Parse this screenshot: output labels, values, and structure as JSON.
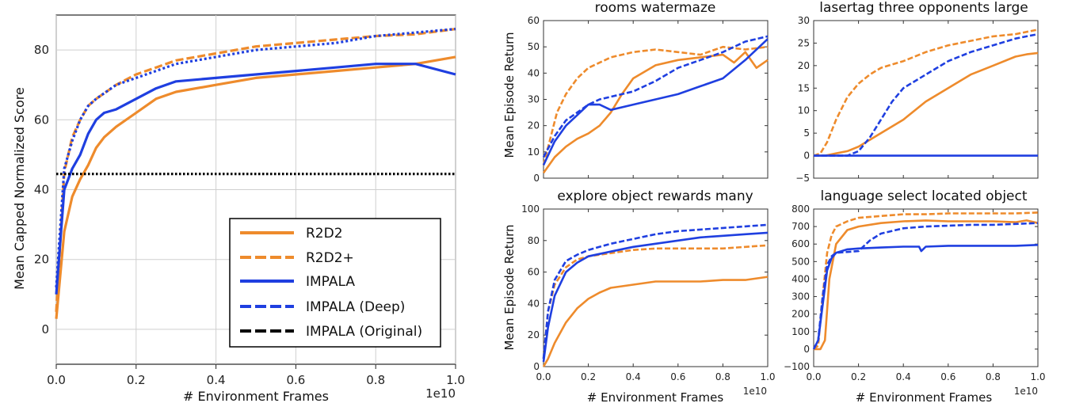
{
  "colors": {
    "r2d2": "#ee8b2c",
    "impala": "#1f3fe0",
    "original": "#000000"
  },
  "chart_data": [
    {
      "type": "line",
      "id": "main",
      "title": "",
      "xlabel": "# Environment Frames",
      "ylabel": "Mean Capped Normalized Score",
      "x_scale_label": "1e10",
      "xlim": [
        0,
        1.0
      ],
      "ylim": [
        -10,
        90
      ],
      "xticks": [
        0.0,
        0.2,
        0.4,
        0.6,
        0.8,
        1.0
      ],
      "xtick_labels": [
        "0.0",
        "0.2",
        "0.4",
        "0.6",
        "0.8",
        "1.0"
      ],
      "yticks": [
        0,
        20,
        40,
        60,
        80
      ],
      "ytick_labels": [
        "0",
        "20",
        "40",
        "60",
        "80"
      ],
      "grid": true,
      "legend": [
        "R2D2",
        "R2D2+",
        "IMPALA",
        "IMPALA (Deep)",
        "IMPALA (Original)"
      ],
      "series": [
        {
          "name": "R2D2",
          "color": "r2d2",
          "style": "solid",
          "x": [
            0,
            0.02,
            0.04,
            0.06,
            0.08,
            0.1,
            0.12,
            0.15,
            0.2,
            0.25,
            0.3,
            0.4,
            0.5,
            0.6,
            0.7,
            0.8,
            0.9,
            1.0
          ],
          "y": [
            3,
            28,
            38,
            43,
            47,
            52,
            55,
            58,
            62,
            66,
            68,
            70,
            72,
            73,
            74,
            75,
            76,
            78
          ]
        },
        {
          "name": "R2D2+",
          "color": "r2d2",
          "style": "dashed",
          "x": [
            0,
            0.02,
            0.04,
            0.06,
            0.08,
            0.1,
            0.15,
            0.2,
            0.25,
            0.3,
            0.4,
            0.5,
            0.6,
            0.7,
            0.8,
            0.9,
            1.0
          ],
          "y": [
            5,
            45,
            55,
            60,
            64,
            66,
            70,
            73,
            75,
            77,
            79,
            81,
            82,
            83,
            84,
            84.5,
            86
          ]
        },
        {
          "name": "IMPALA",
          "color": "impala",
          "style": "solid",
          "x": [
            0,
            0.02,
            0.04,
            0.06,
            0.08,
            0.1,
            0.12,
            0.15,
            0.2,
            0.25,
            0.3,
            0.4,
            0.5,
            0.6,
            0.7,
            0.8,
            0.9,
            1.0
          ],
          "y": [
            10,
            40,
            46,
            50,
            56,
            60,
            62,
            63,
            66,
            69,
            71,
            72,
            73,
            74,
            75,
            76,
            76,
            73
          ]
        },
        {
          "name": "IMPALA (Deep)",
          "color": "impala",
          "style": "dotted",
          "x": [
            0,
            0.02,
            0.04,
            0.06,
            0.08,
            0.1,
            0.15,
            0.2,
            0.25,
            0.3,
            0.4,
            0.5,
            0.6,
            0.7,
            0.8,
            0.9,
            1.0
          ],
          "y": [
            12,
            46,
            54,
            60,
            64,
            66,
            70,
            72,
            74,
            76,
            78,
            80,
            81,
            82,
            84,
            85,
            86
          ]
        },
        {
          "name": "IMPALA (Original)",
          "color": "original",
          "style": "dotted",
          "x": [
            0,
            1.0
          ],
          "y": [
            44.5,
            44.5
          ]
        }
      ]
    },
    {
      "type": "line",
      "id": "p1",
      "title": "rooms watermaze",
      "xlabel": "",
      "ylabel": "Mean Episode Return",
      "xlim": [
        0,
        1.0
      ],
      "ylim": [
        0,
        60
      ],
      "yticks": [
        0,
        10,
        20,
        30,
        40,
        50,
        60
      ],
      "ytick_labels": [
        "0",
        "10",
        "20",
        "30",
        "40",
        "50",
        "60"
      ],
      "series": [
        {
          "name": "R2D2",
          "color": "r2d2",
          "style": "solid",
          "x": [
            0,
            0.05,
            0.1,
            0.15,
            0.2,
            0.25,
            0.3,
            0.35,
            0.4,
            0.5,
            0.6,
            0.7,
            0.8,
            0.85,
            0.9,
            0.95,
            1.0
          ],
          "y": [
            2,
            8,
            12,
            15,
            17,
            20,
            25,
            32,
            38,
            43,
            45,
            46,
            47,
            44,
            48,
            42,
            45
          ]
        },
        {
          "name": "R2D2+",
          "color": "r2d2",
          "style": "dashed",
          "x": [
            0,
            0.03,
            0.06,
            0.1,
            0.15,
            0.2,
            0.25,
            0.3,
            0.4,
            0.5,
            0.6,
            0.7,
            0.8,
            0.9,
            1.0
          ],
          "y": [
            5,
            15,
            25,
            32,
            38,
            42,
            44,
            46,
            48,
            49,
            48,
            47,
            50,
            49,
            50
          ]
        },
        {
          "name": "IMPALA",
          "color": "impala",
          "style": "solid",
          "x": [
            0,
            0.05,
            0.1,
            0.15,
            0.2,
            0.25,
            0.3,
            0.4,
            0.5,
            0.6,
            0.7,
            0.8,
            0.9,
            1.0
          ],
          "y": [
            5,
            14,
            20,
            24,
            28,
            28,
            26,
            28,
            30,
            32,
            35,
            38,
            45,
            53
          ]
        },
        {
          "name": "IMPALA (Deep)",
          "color": "impala",
          "style": "dashed",
          "x": [
            0,
            0.05,
            0.1,
            0.15,
            0.2,
            0.25,
            0.3,
            0.4,
            0.5,
            0.6,
            0.7,
            0.8,
            0.9,
            1.0
          ],
          "y": [
            8,
            16,
            22,
            25,
            28,
            30,
            31,
            33,
            37,
            42,
            45,
            48,
            52,
            54
          ]
        }
      ]
    },
    {
      "type": "line",
      "id": "p2",
      "title": "lasertag three opponents large",
      "xlabel": "",
      "ylabel": "",
      "xlim": [
        0,
        1.0
      ],
      "ylim": [
        -5,
        30
      ],
      "yticks": [
        -5,
        0,
        5,
        10,
        15,
        20,
        25,
        30
      ],
      "ytick_labels": [
        "−5",
        "0",
        "5",
        "10",
        "15",
        "20",
        "25",
        "30"
      ],
      "series": [
        {
          "name": "R2D2",
          "color": "r2d2",
          "style": "solid",
          "x": [
            0,
            0.05,
            0.1,
            0.15,
            0.2,
            0.3,
            0.4,
            0.5,
            0.6,
            0.7,
            0.8,
            0.9,
            0.95,
            1.0
          ],
          "y": [
            0,
            0,
            0.5,
            1,
            2,
            5,
            8,
            12,
            15,
            18,
            20,
            22,
            22.5,
            22.8
          ]
        },
        {
          "name": "R2D2+",
          "color": "r2d2",
          "style": "dashed",
          "x": [
            0,
            0.03,
            0.06,
            0.1,
            0.15,
            0.2,
            0.25,
            0.3,
            0.4,
            0.5,
            0.6,
            0.7,
            0.8,
            0.9,
            1.0
          ],
          "y": [
            0,
            0.5,
            3,
            8,
            13,
            16,
            18,
            19.5,
            21,
            23,
            24.5,
            25.5,
            26.5,
            27,
            28
          ]
        },
        {
          "name": "IMPALA",
          "color": "impala",
          "style": "solid",
          "x": [
            0,
            0.2,
            0.5,
            1.0
          ],
          "y": [
            0,
            0,
            0,
            0
          ]
        },
        {
          "name": "IMPALA (Deep)",
          "color": "impala",
          "style": "dashed",
          "x": [
            0,
            0.15,
            0.2,
            0.25,
            0.3,
            0.35,
            0.4,
            0.5,
            0.6,
            0.7,
            0.8,
            0.9,
            1.0
          ],
          "y": [
            0,
            0,
            1,
            4,
            8,
            12,
            15,
            18,
            21,
            23,
            24.5,
            26,
            27
          ]
        }
      ]
    },
    {
      "type": "line",
      "id": "p3",
      "title": "explore object rewards many",
      "xlabel": "# Environment Frames",
      "ylabel": "Mean Episode Return",
      "x_scale_label": "1e10",
      "xlim": [
        0,
        1.0
      ],
      "ylim": [
        0,
        100
      ],
      "xticks": [
        0.0,
        0.2,
        0.4,
        0.6,
        0.8,
        1.0
      ],
      "xtick_labels": [
        "0.0",
        "0.2",
        "0.4",
        "0.6",
        "0.8",
        "1.0"
      ],
      "yticks": [
        0,
        20,
        40,
        60,
        80,
        100
      ],
      "ytick_labels": [
        "0",
        "20",
        "40",
        "60",
        "80",
        "100"
      ],
      "series": [
        {
          "name": "R2D2",
          "color": "r2d2",
          "style": "solid",
          "x": [
            0,
            0.02,
            0.05,
            0.1,
            0.15,
            0.2,
            0.25,
            0.3,
            0.4,
            0.5,
            0.6,
            0.7,
            0.8,
            0.9,
            1.0
          ],
          "y": [
            0,
            5,
            15,
            28,
            37,
            43,
            47,
            50,
            52,
            54,
            54,
            54,
            55,
            55,
            57
          ]
        },
        {
          "name": "R2D2+",
          "color": "r2d2",
          "style": "dashed",
          "x": [
            0,
            0.02,
            0.05,
            0.1,
            0.15,
            0.2,
            0.3,
            0.4,
            0.5,
            0.6,
            0.7,
            0.8,
            0.9,
            1.0
          ],
          "y": [
            5,
            35,
            52,
            63,
            68,
            70,
            72,
            74,
            75,
            75,
            75,
            75,
            76,
            77
          ]
        },
        {
          "name": "IMPALA",
          "color": "impala",
          "style": "solid",
          "x": [
            0,
            0.02,
            0.05,
            0.1,
            0.15,
            0.2,
            0.3,
            0.4,
            0.5,
            0.6,
            0.7,
            0.8,
            0.9,
            1.0
          ],
          "y": [
            3,
            25,
            45,
            60,
            66,
            70,
            73,
            76,
            78,
            80,
            82,
            83,
            84,
            85
          ]
        },
        {
          "name": "IMPALA (Deep)",
          "color": "impala",
          "style": "dashed",
          "x": [
            0,
            0.02,
            0.05,
            0.1,
            0.15,
            0.2,
            0.3,
            0.4,
            0.5,
            0.6,
            0.7,
            0.8,
            0.9,
            1.0
          ],
          "y": [
            5,
            35,
            55,
            67,
            71,
            74,
            78,
            81,
            84,
            86,
            87,
            88,
            89,
            90
          ]
        }
      ]
    },
    {
      "type": "line",
      "id": "p4",
      "title": "language select located object",
      "xlabel": "# Environment Frames",
      "ylabel": "",
      "x_scale_label": "1e10",
      "xlim": [
        0,
        1.0
      ],
      "ylim": [
        -100,
        800
      ],
      "xticks": [
        0.0,
        0.2,
        0.4,
        0.6,
        0.8,
        1.0
      ],
      "xtick_labels": [
        "0.0",
        "0.2",
        "0.4",
        "0.6",
        "0.8",
        "1.0"
      ],
      "yticks": [
        -100,
        0,
        100,
        200,
        300,
        400,
        500,
        600,
        700,
        800
      ],
      "ytick_labels": [
        "−100",
        "0",
        "100",
        "200",
        "300",
        "400",
        "500",
        "600",
        "700",
        "800"
      ],
      "series": [
        {
          "name": "R2D2",
          "color": "r2d2",
          "style": "solid",
          "x": [
            0,
            0.03,
            0.05,
            0.07,
            0.1,
            0.15,
            0.2,
            0.3,
            0.4,
            0.5,
            0.6,
            0.7,
            0.8,
            0.9,
            0.95,
            1.0
          ],
          "y": [
            0,
            0,
            50,
            400,
            600,
            680,
            700,
            720,
            730,
            735,
            730,
            730,
            730,
            725,
            735,
            720
          ]
        },
        {
          "name": "R2D2+",
          "color": "r2d2",
          "style": "dashed",
          "x": [
            0,
            0.02,
            0.04,
            0.06,
            0.08,
            0.1,
            0.15,
            0.2,
            0.3,
            0.4,
            0.5,
            0.6,
            0.7,
            0.8,
            0.9,
            1.0
          ],
          "y": [
            0,
            20,
            300,
            550,
            650,
            700,
            730,
            750,
            760,
            770,
            770,
            775,
            775,
            775,
            775,
            780
          ]
        },
        {
          "name": "IMPALA",
          "color": "impala",
          "style": "solid",
          "x": [
            0,
            0.02,
            0.04,
            0.06,
            0.08,
            0.1,
            0.15,
            0.2,
            0.3,
            0.4,
            0.47,
            0.48,
            0.5,
            0.6,
            0.7,
            0.8,
            0.9,
            1.0
          ],
          "y": [
            0,
            50,
            250,
            450,
            520,
            550,
            570,
            575,
            580,
            585,
            585,
            560,
            585,
            590,
            590,
            590,
            590,
            595
          ]
        },
        {
          "name": "IMPALA (Deep)",
          "color": "impala",
          "style": "dashed",
          "x": [
            0,
            0.02,
            0.04,
            0.06,
            0.08,
            0.1,
            0.15,
            0.2,
            0.25,
            0.3,
            0.4,
            0.5,
            0.6,
            0.7,
            0.8,
            0.9,
            1.0
          ],
          "y": [
            0,
            50,
            300,
            480,
            530,
            550,
            555,
            560,
            620,
            660,
            690,
            700,
            705,
            710,
            710,
            715,
            720
          ]
        }
      ]
    }
  ]
}
